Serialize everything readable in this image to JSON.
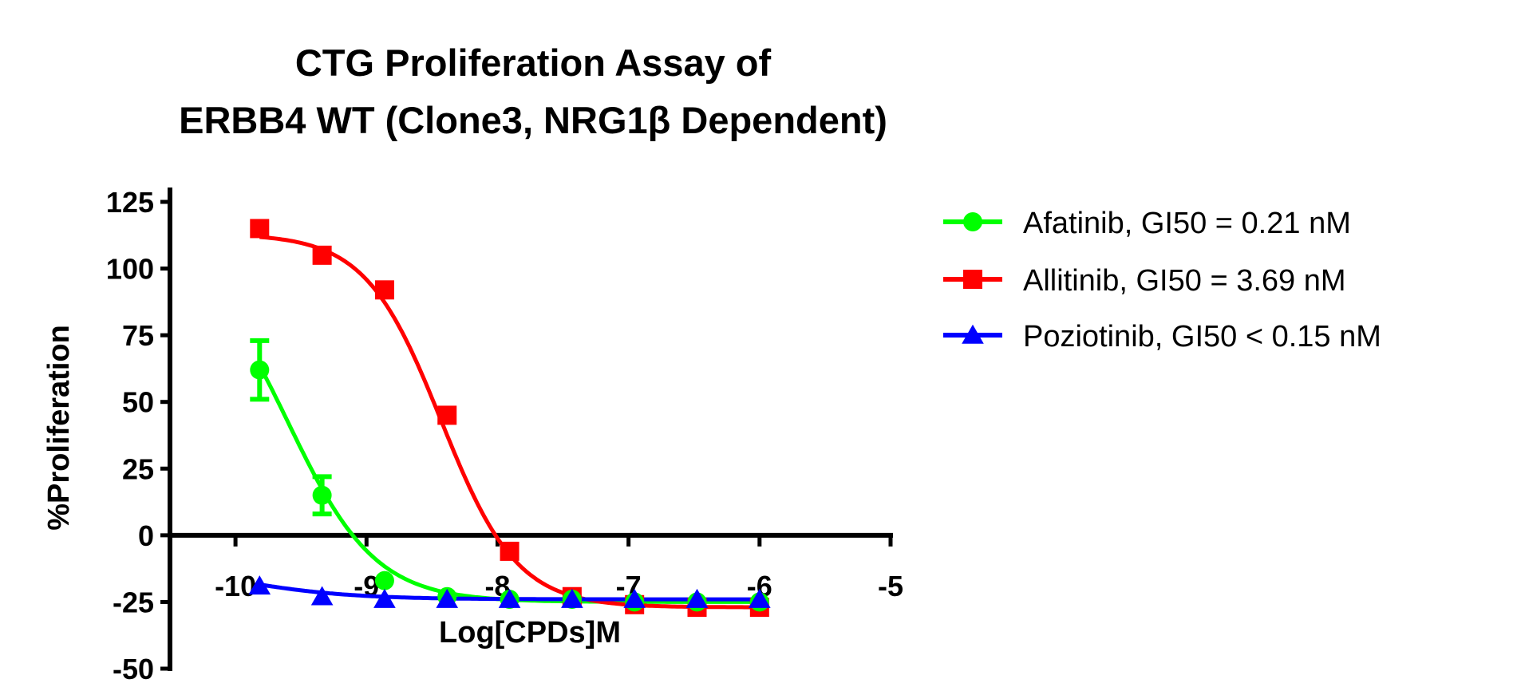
{
  "chart_data": {
    "type": "line",
    "title_lines": [
      "CTG Proliferation Assay of",
      "ERBB4 WT (Clone3, NRG1β Dependent)"
    ],
    "xlabel": "Log[CPDs]M",
    "ylabel": "%Proliferation",
    "xlim": [
      -10.5,
      -5
    ],
    "ylim": [
      -50,
      125
    ],
    "xticks": [
      "-10",
      "-9",
      "-8",
      "-7",
      "-6",
      "-5"
    ],
    "xtick_values": [
      -10,
      -9,
      -8,
      -7,
      -6,
      -5
    ],
    "yticks": [
      "125",
      "100",
      "75",
      "50",
      "25",
      "0",
      "-25",
      "-50"
    ],
    "ytick_values": [
      125,
      100,
      75,
      50,
      25,
      0,
      -25,
      -50
    ],
    "grid": false,
    "legend_placement": "right",
    "x": [
      -9.816,
      -9.339,
      -8.862,
      -8.385,
      -7.908,
      -7.431,
      -6.954,
      -6.477,
      -6.0
    ],
    "series": [
      {
        "name": "Afatinib, GI50 = 0.21 nM",
        "color": "#00ff00",
        "marker": "circle",
        "values": [
          62,
          15,
          -17,
          -23,
          -24,
          -24,
          -25,
          -25,
          -25
        ],
        "error": [
          11,
          7,
          0,
          0,
          0,
          0,
          0,
          0,
          0
        ]
      },
      {
        "name": "Allitinib, GI50 = 3.69 nM",
        "color": "#ff0000",
        "marker": "square",
        "values": [
          115,
          105,
          92,
          45,
          -6,
          -23,
          -26,
          -27,
          -27
        ],
        "error": [
          0,
          0,
          0,
          0,
          0,
          0,
          0,
          0,
          0
        ]
      },
      {
        "name": "Poziotinib, GI50 < 0.15 nM",
        "color": "#0000ff",
        "marker": "triangle",
        "values": [
          -19,
          -23,
          -24,
          -24,
          -24,
          -24,
          -24,
          -24,
          -24
        ],
        "error": [
          0,
          0,
          0,
          0,
          0,
          0,
          0,
          0,
          0
        ]
      }
    ]
  }
}
